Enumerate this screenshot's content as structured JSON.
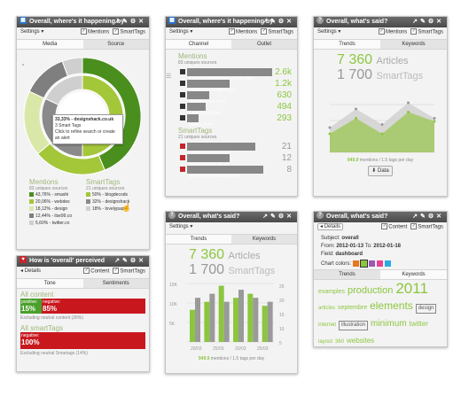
{
  "settings_label": "Settings ▾",
  "mentions_label": "Mentions",
  "smarttags_label": "SmartTags",
  "content_label": "Content",
  "w1": {
    "title": "Overall, where's it happening by",
    "tabs": [
      "Media",
      "Source"
    ],
    "tooltip": {
      "line1": "33,33% - designshack.co.uk",
      "line2": "3 Smart Tags",
      "line3": "Click to refine search or create an alert"
    },
    "mentions_head": "Mentions",
    "mentions_sub": "83 uniques sources",
    "mentions_rows": [
      "43,76% - smashi",
      "20,06% - webdes",
      "18,12% - design",
      "12,44% - ilse99.co",
      "5,60% - twitter.co"
    ],
    "smart_head": "SmartTags",
    "smart_sub": "21 uniques sources",
    "smart_rows": [
      "50% - blogdecods",
      "32% - designshack",
      "18% - lovelypaqu"
    ],
    "colors": [
      "#4a8f1e",
      "#a4c639",
      "#d9e8a8",
      "#7f7f7f",
      "#cfcfcf"
    ],
    "ring": [
      43.76,
      20.06,
      18.12,
      12.44,
      5.6
    ],
    "inner_ring": [
      50,
      32,
      18
    ]
  },
  "w2": {
    "title": "Overall, where's it happening by",
    "tabs": [
      "Channel",
      "Outlet"
    ],
    "mentions_head": "Mentions",
    "mentions_sub": "83 uniques sources",
    "mentions_rows": [
      {
        "name": "www.smashingmagazine.com",
        "value": "2.6k",
        "w": 1.0
      },
      {
        "name": "webdesignledger.com",
        "value": "1.2k",
        "w": 0.5
      },
      {
        "name": "designnewz.com",
        "value": "630",
        "w": 0.26
      },
      {
        "name": "www.ueli5.com",
        "value": "494",
        "w": 0.22
      },
      {
        "name": "twitter.com",
        "value": "293",
        "w": 0.14
      }
    ],
    "smart_head": "SmartTags",
    "smart_sub": "21 uniques sources",
    "smart_rows": [
      {
        "name": "lovelypackage.com",
        "value": "21",
        "w": 0.8
      },
      {
        "name": "designshack.co.uk",
        "value": "12",
        "w": 0.5
      },
      {
        "name": "www.blogdecodesign.fr",
        "value": "8",
        "w": 0.9
      }
    ]
  },
  "w3": {
    "title": "Overall, what's said?",
    "tabs": [
      "Trends",
      "Keywords"
    ],
    "articles_num": "7 360",
    "articles_label": "Articles",
    "tags_num": "1 700",
    "tags_label": "SmartTags",
    "footer_num": "949.9",
    "footer_text": "mentions / 1.5 tags per day",
    "data_button": "Data"
  },
  "w4": {
    "title": "How is 'overall' perceived",
    "details": "Details",
    "tabs": [
      "Tone",
      "Sentiments"
    ],
    "all_content": "All content",
    "pos_label": "positive:",
    "pos_value": "15%",
    "neg_label": "negative:",
    "neg_value": "85%",
    "excl_content": "Excluding neutral content (26%)",
    "all_tags": "All smartTags",
    "neg_value2": "100%",
    "excl_tags": "Excluding neutral Smartags (14%)"
  },
  "w5": {
    "title": "Overall, what's said?",
    "tabs": [
      "Trends",
      "Keywords"
    ],
    "articles_num": "7 360",
    "articles_label": "Articles",
    "tags_num": "1 700",
    "tags_label": "SmartTags",
    "y_left": [
      "15K",
      "10K",
      "5K"
    ],
    "y_right": [
      "25",
      "20",
      "15",
      "10",
      "5"
    ],
    "x_labels": [
      "20/03",
      "25/03",
      "20/03",
      "25/03"
    ],
    "footer_num": "949.9",
    "footer_text": "mentions / 1.5 tags per day"
  },
  "w6": {
    "title": "Overall, what's said?",
    "details": "Details",
    "subject_label": "Subject:",
    "subject_value": "overall",
    "from_label": "From:",
    "from_value": "2012-01-13",
    "to_label": "To:",
    "to_value": "2012-01-18",
    "field_label": "Field:",
    "field_value": "dashboard",
    "chart_colors_label": "Chart colors:",
    "swatches": [
      "#e87722",
      "#8cc63f",
      "#9b59b6",
      "#e84393",
      "#29abe2"
    ],
    "tabs": [
      "Trends",
      "Keywords"
    ],
    "words": [
      "examples",
      "production",
      "2011",
      "articles",
      "septembre",
      "elements",
      "design",
      "internet",
      "illustration",
      "minimum",
      "twitter",
      "layout",
      "360",
      "websites"
    ]
  },
  "chart_data": [
    {
      "type": "area",
      "x": [
        1,
        2,
        3,
        4,
        5
      ],
      "series": [
        {
          "values": [
            40,
            70,
            45,
            80,
            55
          ]
        },
        {
          "values": [
            30,
            55,
            30,
            65,
            50
          ]
        }
      ]
    },
    {
      "type": "bar",
      "categories": [
        "1",
        "2",
        "3",
        "4",
        "5",
        "6"
      ],
      "series": [
        {
          "values": [
            8,
            10,
            14,
            11,
            12,
            9
          ]
        },
        {
          "values": [
            11,
            12,
            10,
            13,
            11,
            10
          ]
        }
      ],
      "y_ticks_left": [
        "15K",
        "10K",
        "5K"
      ],
      "y_ticks_right": [
        "25",
        "20",
        "15",
        "10",
        "5"
      ],
      "x_ticks": [
        "20/03",
        "25/03",
        "20/03",
        "25/03"
      ]
    }
  ]
}
